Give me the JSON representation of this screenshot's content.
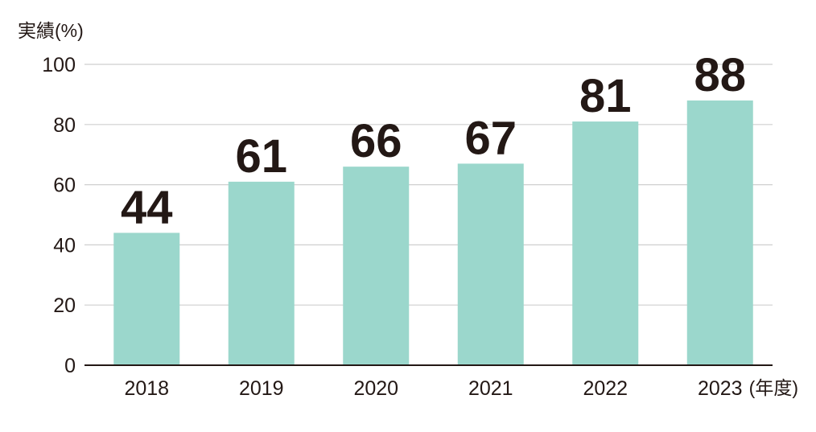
{
  "chart_data": {
    "type": "bar",
    "ylabel": "実績(%)",
    "xlabel": "(年度)",
    "categories": [
      "2018",
      "2019",
      "2020",
      "2021",
      "2022",
      "2023"
    ],
    "values": [
      44,
      61,
      66,
      67,
      81,
      88
    ],
    "data_labels": [
      "44",
      "61",
      "66",
      "67",
      "81",
      "88"
    ],
    "ylim": [
      0,
      100
    ],
    "yticks": [
      "0",
      "20",
      "40",
      "60",
      "80",
      "100"
    ],
    "grid": true,
    "legend": "none",
    "colors": {
      "bar": "#9bd7cc",
      "grid": "#cfcfcf",
      "axis": "#231815",
      "text": "#231815"
    }
  }
}
